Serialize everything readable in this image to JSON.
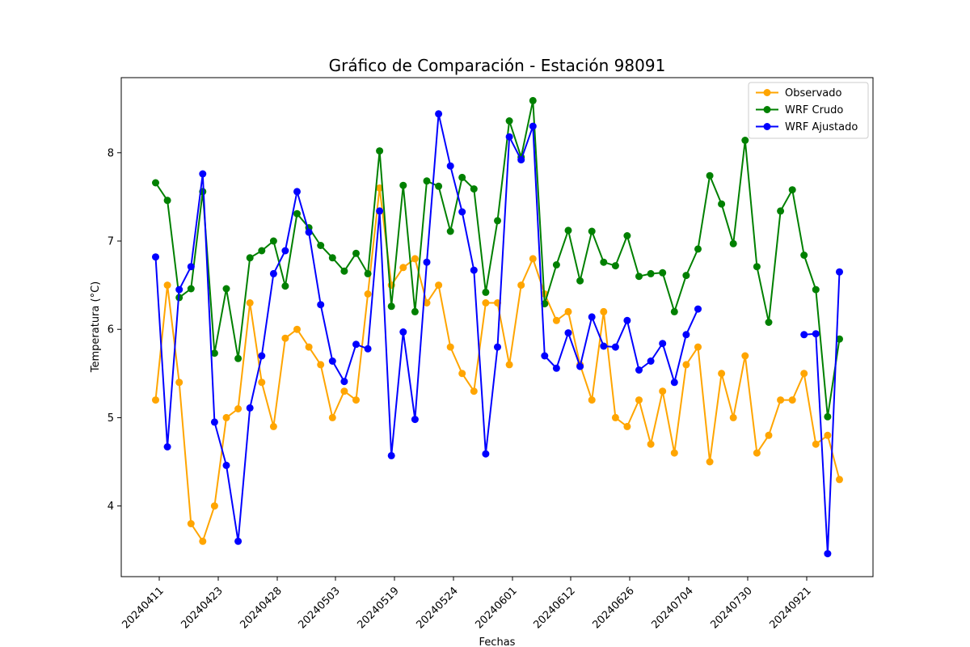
{
  "chart_data": {
    "type": "line",
    "title": "Gráfico de Comparación - Estación 98091",
    "xlabel": "Fechas",
    "ylabel": "Temperatura (°C)",
    "x_tick_labels": [
      "20240411",
      "20240423",
      "20240428",
      "20240503",
      "20240519",
      "20240524",
      "20240601",
      "20240612",
      "20240626",
      "20240704",
      "20240730",
      "20240921"
    ],
    "y_ticks": [
      "4",
      "5",
      "6",
      "7",
      "8"
    ],
    "ylim": [
      3.2,
      8.85
    ],
    "grid": false,
    "legend_position": "top-right",
    "series": [
      {
        "name": "Observado",
        "color": "#ffa500",
        "values": [
          5.2,
          6.5,
          5.4,
          3.8,
          3.6,
          4.0,
          5.0,
          5.1,
          6.3,
          5.4,
          4.9,
          5.9,
          6.0,
          5.8,
          5.6,
          5.0,
          5.3,
          5.2,
          6.4,
          7.6,
          6.5,
          6.7,
          6.8,
          6.3,
          6.5,
          5.8,
          5.5,
          5.3,
          6.3,
          6.3,
          5.6,
          6.5,
          6.8,
          6.4,
          6.1,
          6.2,
          5.6,
          5.2,
          6.2,
          5.0,
          4.9,
          5.2,
          4.7,
          5.3,
          4.6,
          5.6,
          5.8,
          4.5,
          5.5,
          5.0,
          5.7,
          4.6,
          4.8,
          5.2,
          5.2,
          5.5,
          4.7,
          4.8,
          4.3
        ]
      },
      {
        "name": "WRF Crudo",
        "color": "#008000",
        "values": [
          7.66,
          7.46,
          6.36,
          6.46,
          7.56,
          5.73,
          6.46,
          5.67,
          6.81,
          6.89,
          7.0,
          6.49,
          7.31,
          7.15,
          6.95,
          6.81,
          6.66,
          6.86,
          6.63,
          8.02,
          6.26,
          7.63,
          6.2,
          7.68,
          7.62,
          7.11,
          7.72,
          7.59,
          6.42,
          7.23,
          8.36,
          7.95,
          8.59,
          6.29,
          6.73,
          7.12,
          6.55,
          7.11,
          6.76,
          6.72,
          7.06,
          6.6,
          6.63,
          6.64,
          6.2,
          6.61,
          6.91,
          7.74,
          7.42,
          6.97,
          8.14,
          6.71,
          6.08,
          7.34,
          7.58,
          6.84,
          6.45,
          5.01,
          5.89
        ]
      },
      {
        "name": "WRF Ajustado",
        "color": "#0000ff",
        "values": [
          6.82,
          4.67,
          6.45,
          6.71,
          7.76,
          4.95,
          4.46,
          3.6,
          5.11,
          5.7,
          6.63,
          6.89,
          7.56,
          7.1,
          6.28,
          5.64,
          5.41,
          5.83,
          5.78,
          7.34,
          4.57,
          5.97,
          4.98,
          6.76,
          8.44,
          7.85,
          7.33,
          6.67,
          4.59,
          5.8,
          8.18,
          7.92,
          8.3,
          5.7,
          5.56,
          5.96,
          5.58,
          6.14,
          5.81,
          5.8,
          6.1,
          5.54,
          5.64,
          5.84,
          5.4,
          5.94,
          6.23,
          null,
          null,
          null,
          null,
          null,
          null,
          null,
          null,
          5.94,
          5.95,
          3.46,
          6.65
        ]
      }
    ]
  }
}
